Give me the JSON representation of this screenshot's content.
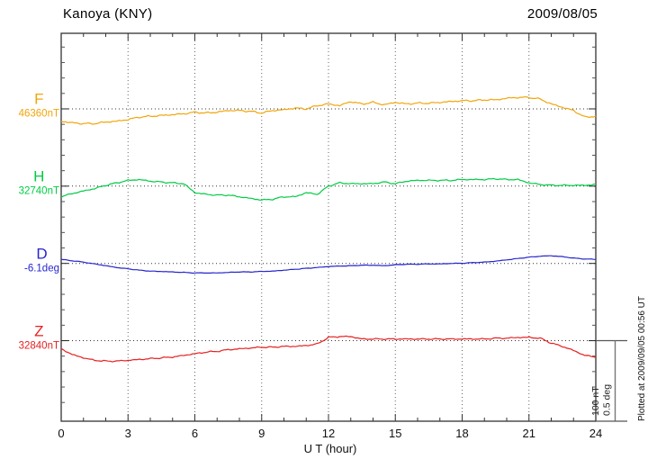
{
  "header": {
    "station": "Kanoya (KNY)",
    "date": "2009/08/05"
  },
  "axis": {
    "x_label": "U T (hour)",
    "x_min": 0,
    "x_max": 24,
    "x_major_step": 3,
    "x_minor_step": 1,
    "x_tick_labels": [
      "0",
      "3",
      "6",
      "9",
      "12",
      "15",
      "18",
      "21",
      "24"
    ]
  },
  "scale_bar": {
    "nt_label": "100 nT",
    "deg_label": "0.5 deg"
  },
  "footer_note": "Plotted at 2009/09/05 00:56 UT",
  "chart_data": {
    "type": "line",
    "title": "Kanoya (KNY) magnetogram",
    "date": "2009/08/05",
    "xlabel": "U T (hour)",
    "x_range": [
      0,
      24
    ],
    "x_step_hours": 0.5,
    "grid": "dotted",
    "legend_position": "left margin",
    "scale": {
      "nT_per_division": 100,
      "deg_per_division": 0.5
    },
    "series": [
      {
        "name": "F",
        "unit": "nT",
        "reference": 46360,
        "reference_label": "46360nT",
        "color": "#f2a50a",
        "values": [
          46345,
          46343,
          46342,
          46342,
          46344,
          46345,
          46347,
          46350,
          46351,
          46352,
          46353,
          46354,
          46356,
          46355,
          46356,
          46358,
          46358,
          46357,
          46355,
          46358,
          46359,
          46361,
          46360,
          46364,
          46366,
          46364,
          46369,
          46366,
          46368,
          46365,
          46368,
          46366,
          46367,
          46367,
          46368,
          46369,
          46370,
          46370,
          46371,
          46371,
          46373,
          46374,
          46374,
          46372,
          46366,
          46362,
          46358,
          46350,
          46351
        ]
      },
      {
        "name": "H",
        "unit": "nT",
        "reference": 32740,
        "reference_label": "32740nT",
        "color": "#00cc44",
        "values": [
          32727,
          32731,
          32734,
          32737,
          32741,
          32744,
          32747,
          32748,
          32746,
          32745,
          32744,
          32743,
          32732,
          32730,
          32729,
          32729,
          32727,
          32725,
          32723,
          32724,
          32727,
          32727,
          32732,
          32730,
          32740,
          32744,
          32743,
          32743,
          32743,
          32745,
          32743,
          32746,
          32747,
          32747,
          32747,
          32747,
          32748,
          32748,
          32748,
          32749,
          32748,
          32748,
          32744,
          32742,
          32741,
          32741,
          32741,
          32741,
          32742
        ]
      },
      {
        "name": "D",
        "unit": "deg",
        "reference": -6.1,
        "reference_label": "-6.1deg",
        "color": "#2525cd",
        "values": [
          -6.075,
          -6.084,
          -6.092,
          -6.103,
          -6.114,
          -6.125,
          -6.133,
          -6.141,
          -6.147,
          -6.149,
          -6.152,
          -6.155,
          -6.158,
          -6.158,
          -6.158,
          -6.155,
          -6.152,
          -6.152,
          -6.149,
          -6.147,
          -6.141,
          -6.136,
          -6.13,
          -6.125,
          -6.119,
          -6.116,
          -6.114,
          -6.111,
          -6.111,
          -6.114,
          -6.108,
          -6.105,
          -6.105,
          -6.103,
          -6.103,
          -6.1,
          -6.099,
          -6.095,
          -6.092,
          -6.086,
          -6.078,
          -6.07,
          -6.062,
          -6.056,
          -6.053,
          -6.059,
          -6.067,
          -6.073,
          -6.075
        ]
      },
      {
        "name": "Z",
        "unit": "nT",
        "reference": 32840,
        "reference_label": "32840nT",
        "color": "#e62020",
        "values": [
          32830,
          32823,
          32819,
          32816,
          32815,
          32815,
          32816,
          32817,
          32818,
          32819,
          32820,
          32822,
          32824,
          32826,
          32827,
          32829,
          32830,
          32831,
          32832,
          32832,
          32833,
          32833,
          32834,
          32836,
          32844,
          32845,
          32845,
          32842,
          32842,
          32842,
          32842,
          32842,
          32842,
          32842,
          32842,
          32842,
          32842,
          32842,
          32842,
          32843,
          32843,
          32844,
          32844,
          32843,
          32837,
          32833,
          32828,
          32822,
          32820
        ]
      }
    ]
  }
}
